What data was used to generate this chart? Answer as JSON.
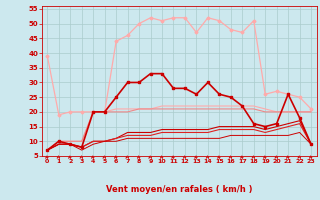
{
  "background_color": "#cce8ee",
  "grid_color": "#aacccc",
  "xlabel": "Vent moyen/en rafales ( km/h )",
  "xlabel_color": "#cc0000",
  "tick_color": "#cc0000",
  "arrow_color": "#cc0000",
  "xlim": [
    -0.5,
    23.5
  ],
  "ylim": [
    5,
    56
  ],
  "yticks": [
    5,
    10,
    15,
    20,
    25,
    30,
    35,
    40,
    45,
    50,
    55
  ],
  "xticks": [
    0,
    1,
    2,
    3,
    4,
    5,
    6,
    7,
    8,
    9,
    10,
    11,
    12,
    13,
    14,
    15,
    16,
    17,
    18,
    19,
    20,
    21,
    22,
    23
  ],
  "lines": [
    {
      "x": [
        0,
        1,
        2,
        3,
        4,
        5,
        6,
        7,
        8,
        9,
        10,
        11,
        12,
        13,
        14,
        15,
        16,
        17,
        18,
        19,
        20,
        21,
        22,
        23
      ],
      "y": [
        39,
        19,
        20,
        20,
        20,
        20,
        44,
        46,
        50,
        52,
        51,
        52,
        52,
        47,
        52,
        51,
        48,
        47,
        51,
        26,
        27,
        26,
        25,
        21
      ],
      "color": "#ffaaaa",
      "lw": 0.9,
      "marker": "D",
      "ms": 1.5
    },
    {
      "x": [
        0,
        1,
        2,
        3,
        4,
        5,
        6,
        7,
        8,
        9,
        10,
        11,
        12,
        13,
        14,
        15,
        16,
        17,
        18,
        19,
        20,
        21,
        22,
        23
      ],
      "y": [
        7,
        10,
        9,
        8,
        20,
        20,
        25,
        30,
        30,
        33,
        33,
        28,
        28,
        26,
        30,
        26,
        25,
        22,
        16,
        15,
        16,
        26,
        18,
        9
      ],
      "color": "#cc0000",
      "lw": 1.2,
      "marker": "s",
      "ms": 2.0
    },
    {
      "x": [
        0,
        1,
        2,
        3,
        4,
        5,
        6,
        7,
        8,
        9,
        10,
        11,
        12,
        13,
        14,
        15,
        16,
        17,
        18,
        19,
        20,
        21,
        22,
        23
      ],
      "y": [
        7,
        10,
        10,
        10,
        20,
        20,
        21,
        21,
        21,
        21,
        22,
        22,
        22,
        22,
        22,
        22,
        22,
        22,
        22,
        21,
        20,
        20,
        20,
        20
      ],
      "color": "#ffaaaa",
      "lw": 0.8,
      "marker": null,
      "ms": 0
    },
    {
      "x": [
        0,
        1,
        2,
        3,
        4,
        5,
        6,
        7,
        8,
        9,
        10,
        11,
        12,
        13,
        14,
        15,
        16,
        17,
        18,
        19,
        20,
        21,
        22,
        23
      ],
      "y": [
        7,
        10,
        10,
        10,
        20,
        20,
        20,
        20,
        21,
        21,
        21,
        21,
        21,
        21,
        21,
        21,
        21,
        21,
        21,
        20,
        20,
        20,
        20,
        20
      ],
      "color": "#ee8888",
      "lw": 0.8,
      "marker": null,
      "ms": 0
    },
    {
      "x": [
        0,
        1,
        2,
        3,
        4,
        5,
        6,
        7,
        8,
        9,
        10,
        11,
        12,
        13,
        14,
        15,
        16,
        17,
        18,
        19,
        20,
        21,
        22,
        23
      ],
      "y": [
        7,
        9,
        9,
        8,
        10,
        10,
        11,
        13,
        13,
        13,
        14,
        14,
        14,
        14,
        14,
        15,
        15,
        15,
        15,
        14,
        15,
        16,
        17,
        9
      ],
      "color": "#cc0000",
      "lw": 0.8,
      "marker": null,
      "ms": 0
    },
    {
      "x": [
        0,
        1,
        2,
        3,
        4,
        5,
        6,
        7,
        8,
        9,
        10,
        11,
        12,
        13,
        14,
        15,
        16,
        17,
        18,
        19,
        20,
        21,
        22,
        23
      ],
      "y": [
        7,
        9,
        9,
        8,
        10,
        10,
        11,
        12,
        12,
        12,
        13,
        13,
        13,
        13,
        13,
        14,
        14,
        14,
        14,
        13,
        14,
        15,
        16,
        9
      ],
      "color": "#dd2222",
      "lw": 0.8,
      "marker": null,
      "ms": 0
    },
    {
      "x": [
        0,
        1,
        2,
        3,
        4,
        5,
        6,
        7,
        8,
        9,
        10,
        11,
        12,
        13,
        14,
        15,
        16,
        17,
        18,
        19,
        20,
        21,
        22,
        23
      ],
      "y": [
        7,
        9,
        9,
        7,
        9,
        10,
        10,
        11,
        11,
        11,
        11,
        11,
        11,
        11,
        11,
        11,
        12,
        12,
        12,
        12,
        12,
        12,
        13,
        9
      ],
      "color": "#cc0000",
      "lw": 0.7,
      "marker": null,
      "ms": 0
    }
  ]
}
